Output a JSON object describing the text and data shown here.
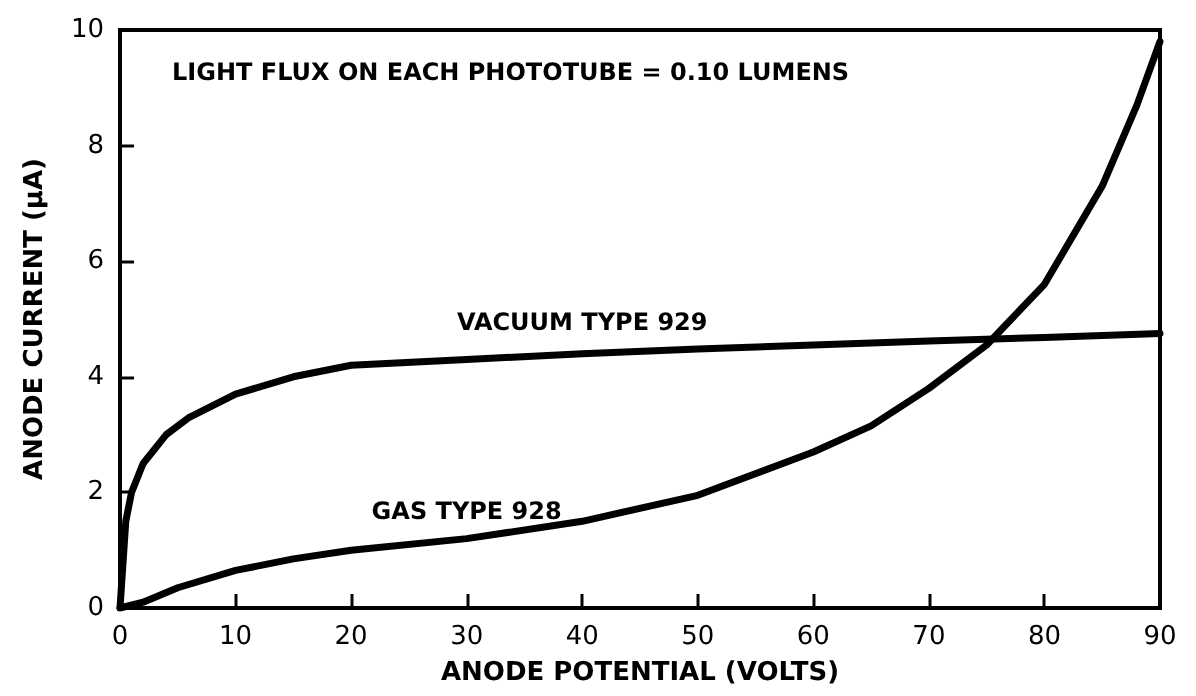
{
  "chart_data": {
    "type": "line",
    "xlabel": "ANODE POTENTIAL (VOLTS)",
    "ylabel": "ANODE CURRENT (μA)",
    "annotations": [
      "LIGHT FLUX ON EACH PHOTOTUBE = 0.10 LUMENS"
    ],
    "xlim": [
      0,
      90
    ],
    "xticks": [
      0,
      10,
      20,
      30,
      40,
      50,
      60,
      70,
      80,
      90
    ],
    "ylim": [
      0,
      10
    ],
    "yticks": [
      0,
      2,
      4,
      6,
      8,
      10
    ],
    "grid": false,
    "legend": false,
    "marker": "none",
    "line_style": "solid",
    "series": [
      {
        "name": "VACUUM TYPE 929",
        "color": "#000000",
        "x": [
          0,
          0.5,
          1,
          2,
          4,
          6,
          10,
          15,
          20,
          30,
          40,
          50,
          60,
          70,
          80,
          90
        ],
        "values": [
          0,
          1.5,
          2,
          2.5,
          3,
          3.3,
          3.7,
          4,
          4.2,
          4.3,
          4.4,
          4.48,
          4.55,
          4.62,
          4.68,
          4.75
        ]
      },
      {
        "name": "GAS TYPE 928",
        "color": "#000000",
        "x": [
          0,
          2,
          5,
          10,
          15,
          20,
          30,
          40,
          50,
          60,
          65,
          70,
          75,
          80,
          85,
          88,
          90
        ],
        "values": [
          0,
          0.1,
          0.35,
          0.65,
          0.85,
          1,
          1.2,
          1.5,
          1.95,
          2.7,
          3.15,
          3.8,
          4.55,
          5.6,
          7.3,
          8.7,
          9.8
        ]
      }
    ]
  }
}
